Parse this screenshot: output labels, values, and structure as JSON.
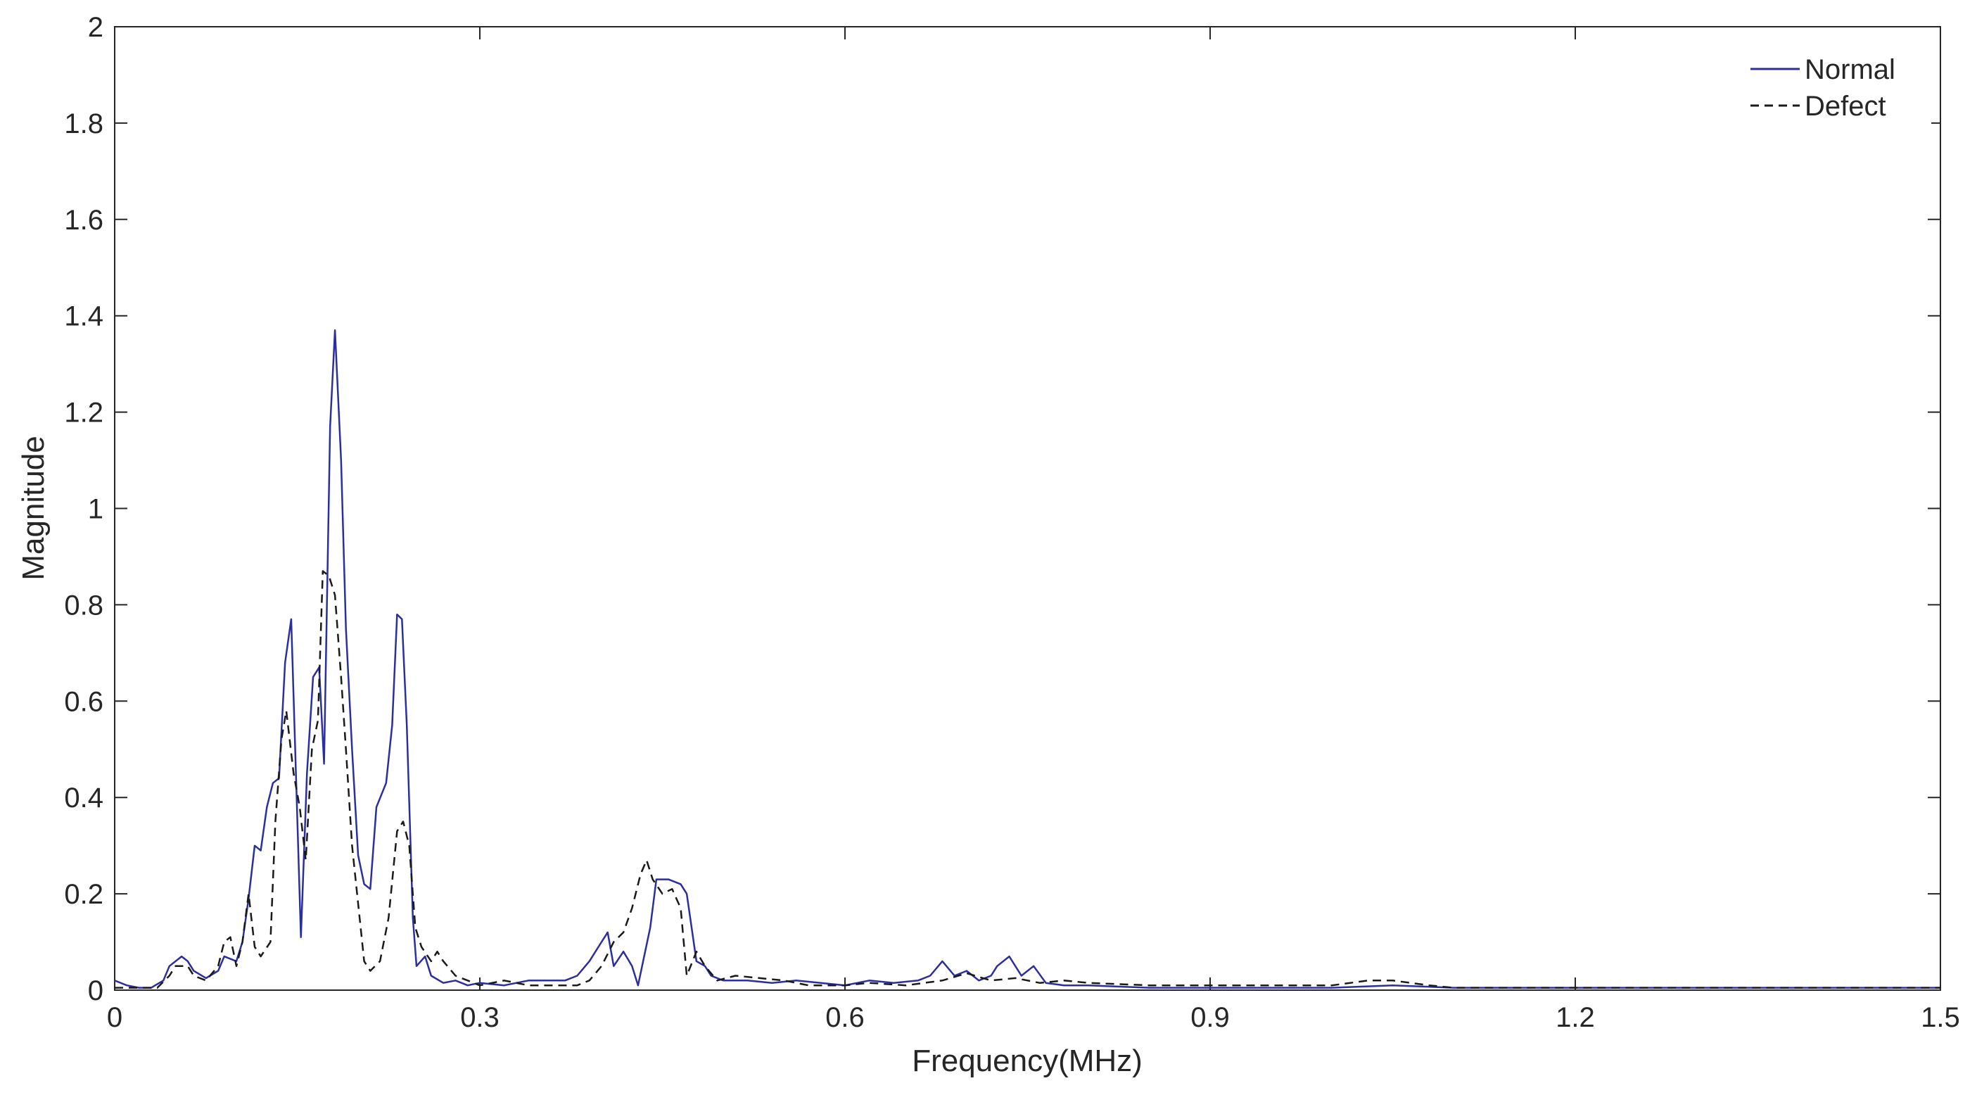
{
  "chart_data": {
    "type": "line",
    "xlabel": "Frequency(MHz)",
    "ylabel": "Magnitude",
    "xlim": [
      0,
      1.5
    ],
    "ylim": [
      0,
      2
    ],
    "xticks": [
      0,
      0.3,
      0.6,
      0.9,
      1.2,
      1.5
    ],
    "xtick_labels": [
      "0",
      "0.3",
      "0.6",
      "0.9",
      "1.2",
      "1.5"
    ],
    "yticks": [
      0,
      0.2,
      0.4,
      0.6,
      0.8,
      1,
      1.2,
      1.4,
      1.6,
      1.8,
      2
    ],
    "ytick_labels": [
      "0",
      "0.2",
      "0.4",
      "0.6",
      "0.8",
      "1",
      "1.2",
      "1.4",
      "1.6",
      "1.8",
      "2"
    ],
    "grid": false,
    "legend_position": "top-right",
    "series": [
      {
        "name": "Normal",
        "color": "#2b2f9e",
        "style": "solid",
        "points": [
          [
            0,
            0.02
          ],
          [
            0.01,
            0.01
          ],
          [
            0.02,
            0.005
          ],
          [
            0.03,
            0.005
          ],
          [
            0.04,
            0.02
          ],
          [
            0.045,
            0.05
          ],
          [
            0.055,
            0.07
          ],
          [
            0.06,
            0.06
          ],
          [
            0.065,
            0.04
          ],
          [
            0.075,
            0.025
          ],
          [
            0.085,
            0.04
          ],
          [
            0.09,
            0.07
          ],
          [
            0.1,
            0.06
          ],
          [
            0.105,
            0.1
          ],
          [
            0.11,
            0.19
          ],
          [
            0.115,
            0.3
          ],
          [
            0.12,
            0.29
          ],
          [
            0.125,
            0.38
          ],
          [
            0.13,
            0.43
          ],
          [
            0.135,
            0.44
          ],
          [
            0.14,
            0.68
          ],
          [
            0.145,
            0.77
          ],
          [
            0.15,
            0.36
          ],
          [
            0.153,
            0.11
          ],
          [
            0.158,
            0.45
          ],
          [
            0.163,
            0.65
          ],
          [
            0.168,
            0.67
          ],
          [
            0.172,
            0.47
          ],
          [
            0.177,
            1.17
          ],
          [
            0.181,
            1.37
          ],
          [
            0.186,
            1.1
          ],
          [
            0.19,
            0.75
          ],
          [
            0.195,
            0.5
          ],
          [
            0.2,
            0.28
          ],
          [
            0.205,
            0.22
          ],
          [
            0.21,
            0.21
          ],
          [
            0.215,
            0.38
          ],
          [
            0.223,
            0.43
          ],
          [
            0.228,
            0.55
          ],
          [
            0.232,
            0.78
          ],
          [
            0.236,
            0.77
          ],
          [
            0.24,
            0.55
          ],
          [
            0.245,
            0.15
          ],
          [
            0.248,
            0.05
          ],
          [
            0.255,
            0.07
          ],
          [
            0.26,
            0.03
          ],
          [
            0.27,
            0.015
          ],
          [
            0.28,
            0.02
          ],
          [
            0.29,
            0.01
          ],
          [
            0.3,
            0.015
          ],
          [
            0.32,
            0.01
          ],
          [
            0.34,
            0.02
          ],
          [
            0.35,
            0.02
          ],
          [
            0.37,
            0.02
          ],
          [
            0.38,
            0.03
          ],
          [
            0.39,
            0.06
          ],
          [
            0.4,
            0.1
          ],
          [
            0.405,
            0.12
          ],
          [
            0.41,
            0.05
          ],
          [
            0.418,
            0.08
          ],
          [
            0.425,
            0.05
          ],
          [
            0.43,
            0.01
          ],
          [
            0.44,
            0.13
          ],
          [
            0.445,
            0.23
          ],
          [
            0.455,
            0.23
          ],
          [
            0.465,
            0.22
          ],
          [
            0.47,
            0.2
          ],
          [
            0.478,
            0.06
          ],
          [
            0.485,
            0.05
          ],
          [
            0.49,
            0.03
          ],
          [
            0.5,
            0.02
          ],
          [
            0.52,
            0.02
          ],
          [
            0.54,
            0.015
          ],
          [
            0.56,
            0.02
          ],
          [
            0.58,
            0.015
          ],
          [
            0.6,
            0.01
          ],
          [
            0.62,
            0.02
          ],
          [
            0.64,
            0.015
          ],
          [
            0.66,
            0.02
          ],
          [
            0.67,
            0.03
          ],
          [
            0.68,
            0.06
          ],
          [
            0.69,
            0.03
          ],
          [
            0.7,
            0.04
          ],
          [
            0.71,
            0.02
          ],
          [
            0.72,
            0.03
          ],
          [
            0.725,
            0.05
          ],
          [
            0.735,
            0.07
          ],
          [
            0.745,
            0.03
          ],
          [
            0.755,
            0.05
          ],
          [
            0.765,
            0.015
          ],
          [
            0.78,
            0.01
          ],
          [
            0.8,
            0.01
          ],
          [
            0.85,
            0.005
          ],
          [
            0.9,
            0.005
          ],
          [
            0.95,
            0.005
          ],
          [
            1.0,
            0.005
          ],
          [
            1.05,
            0.01
          ],
          [
            1.1,
            0.005
          ],
          [
            1.15,
            0.005
          ],
          [
            1.2,
            0.005
          ],
          [
            1.25,
            0.005
          ],
          [
            1.3,
            0.005
          ],
          [
            1.35,
            0.005
          ],
          [
            1.4,
            0.005
          ],
          [
            1.45,
            0.005
          ],
          [
            1.5,
            0.005
          ]
        ]
      },
      {
        "name": "Defect",
        "color": "#1a1a1a",
        "style": "dashed",
        "points": [
          [
            0,
            0.005
          ],
          [
            0.02,
            0.005
          ],
          [
            0.035,
            0.005
          ],
          [
            0.045,
            0.03
          ],
          [
            0.05,
            0.05
          ],
          [
            0.06,
            0.05
          ],
          [
            0.065,
            0.03
          ],
          [
            0.075,
            0.02
          ],
          [
            0.085,
            0.05
          ],
          [
            0.09,
            0.1
          ],
          [
            0.095,
            0.11
          ],
          [
            0.1,
            0.05
          ],
          [
            0.105,
            0.1
          ],
          [
            0.11,
            0.2
          ],
          [
            0.115,
            0.09
          ],
          [
            0.12,
            0.07
          ],
          [
            0.128,
            0.1
          ],
          [
            0.132,
            0.35
          ],
          [
            0.137,
            0.52
          ],
          [
            0.141,
            0.58
          ],
          [
            0.147,
            0.45
          ],
          [
            0.152,
            0.38
          ],
          [
            0.157,
            0.27
          ],
          [
            0.162,
            0.5
          ],
          [
            0.167,
            0.56
          ],
          [
            0.171,
            0.87
          ],
          [
            0.176,
            0.86
          ],
          [
            0.181,
            0.82
          ],
          [
            0.186,
            0.65
          ],
          [
            0.19,
            0.5
          ],
          [
            0.195,
            0.3
          ],
          [
            0.2,
            0.18
          ],
          [
            0.205,
            0.06
          ],
          [
            0.21,
            0.04
          ],
          [
            0.218,
            0.06
          ],
          [
            0.225,
            0.15
          ],
          [
            0.232,
            0.33
          ],
          [
            0.237,
            0.35
          ],
          [
            0.242,
            0.3
          ],
          [
            0.247,
            0.13
          ],
          [
            0.252,
            0.09
          ],
          [
            0.26,
            0.06
          ],
          [
            0.265,
            0.08
          ],
          [
            0.27,
            0.06
          ],
          [
            0.28,
            0.03
          ],
          [
            0.29,
            0.02
          ],
          [
            0.3,
            0.01
          ],
          [
            0.32,
            0.02
          ],
          [
            0.34,
            0.01
          ],
          [
            0.36,
            0.01
          ],
          [
            0.38,
            0.01
          ],
          [
            0.39,
            0.02
          ],
          [
            0.4,
            0.05
          ],
          [
            0.41,
            0.1
          ],
          [
            0.418,
            0.12
          ],
          [
            0.425,
            0.17
          ],
          [
            0.432,
            0.24
          ],
          [
            0.437,
            0.27
          ],
          [
            0.442,
            0.23
          ],
          [
            0.45,
            0.2
          ],
          [
            0.458,
            0.21
          ],
          [
            0.465,
            0.17
          ],
          [
            0.47,
            0.03
          ],
          [
            0.478,
            0.08
          ],
          [
            0.485,
            0.05
          ],
          [
            0.495,
            0.02
          ],
          [
            0.51,
            0.03
          ],
          [
            0.53,
            0.025
          ],
          [
            0.55,
            0.02
          ],
          [
            0.57,
            0.01
          ],
          [
            0.6,
            0.01
          ],
          [
            0.62,
            0.015
          ],
          [
            0.65,
            0.01
          ],
          [
            0.68,
            0.02
          ],
          [
            0.7,
            0.035
          ],
          [
            0.72,
            0.02
          ],
          [
            0.74,
            0.025
          ],
          [
            0.76,
            0.015
          ],
          [
            0.78,
            0.02
          ],
          [
            0.8,
            0.015
          ],
          [
            0.85,
            0.01
          ],
          [
            0.9,
            0.01
          ],
          [
            0.95,
            0.01
          ],
          [
            1.0,
            0.01
          ],
          [
            1.03,
            0.02
          ],
          [
            1.05,
            0.02
          ],
          [
            1.08,
            0.01
          ],
          [
            1.1,
            0.005
          ],
          [
            1.15,
            0.005
          ],
          [
            1.2,
            0.005
          ],
          [
            1.3,
            0.005
          ],
          [
            1.4,
            0.005
          ],
          [
            1.5,
            0.005
          ]
        ]
      }
    ]
  }
}
